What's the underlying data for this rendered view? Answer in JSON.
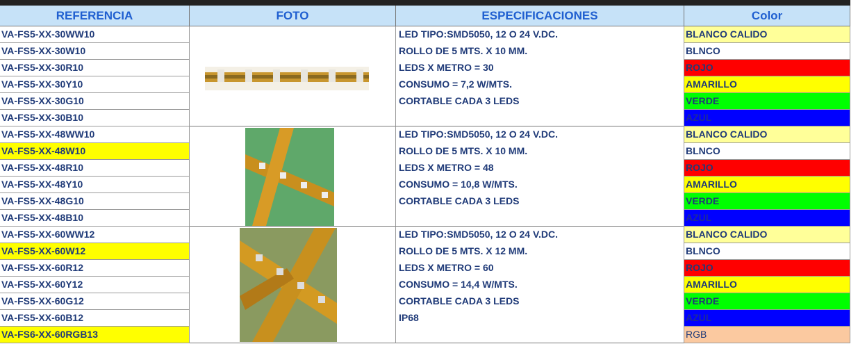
{
  "header": [
    "REFERENCIA",
    "FOTO",
    "ESPECIFICACIONES",
    "Color"
  ],
  "groups": [
    {
      "references": [
        {
          "code": "VA-FS5-XX-30WW10"
        },
        {
          "code": "VA-FS5-XX-30W10"
        },
        {
          "code": "VA-FS5-XX-30R10"
        },
        {
          "code": "VA-FS5-XX-30Y10"
        },
        {
          "code": "VA-FS5-XX-30G10"
        },
        {
          "code": "VA-FS5-XX-30B10"
        }
      ],
      "specs": [
        "LED TIPO:SMD5050, 12 O 24 V.DC.",
        "ROLLO DE 5 MTS. X 10 MM.",
        "LEDS X METRO = 30",
        "CONSUMO = 7,2 W/MTS.",
        "CORTABLE CADA 3 LEDS"
      ],
      "colors": [
        {
          "label": "BLANCO CALIDO",
          "fill": "#ffff99"
        },
        {
          "label": "BLNCO",
          "fill": "#ffffff"
        },
        {
          "label": "ROJO",
          "fill": "#ff0000"
        },
        {
          "label": "AMARILLO",
          "fill": "#ffff00"
        },
        {
          "label": "VERDE",
          "fill": "#00ff00"
        },
        {
          "label": "AZUL",
          "fill": "#0000ff"
        }
      ]
    },
    {
      "references": [
        {
          "code": "VA-FS5-XX-48WW10"
        },
        {
          "code": "VA-FS5-XX-48W10",
          "fill": "#ffff00"
        },
        {
          "code": "VA-FS5-XX-48R10"
        },
        {
          "code": "VA-FS5-XX-48Y10"
        },
        {
          "code": "VA-FS5-XX-48G10"
        },
        {
          "code": "VA-FS5-XX-48B10"
        }
      ],
      "specs": [
        "LED TIPO:SMD5050, 12 O 24 V.DC.",
        "ROLLO DE 5 MTS. X 10 MM.",
        "LEDS X METRO = 48",
        "CONSUMO = 10,8 W/MTS.",
        "CORTABLE CADA 3 LEDS"
      ],
      "colors": [
        {
          "label": "BLANCO CALIDO",
          "fill": "#ffff99"
        },
        {
          "label": "BLNCO",
          "fill": "#ffffff"
        },
        {
          "label": "ROJO",
          "fill": "#ff0000"
        },
        {
          "label": "AMARILLO",
          "fill": "#ffff00"
        },
        {
          "label": "VERDE",
          "fill": "#00ff00"
        },
        {
          "label": "AZUL",
          "fill": "#0000ff"
        }
      ]
    },
    {
      "references": [
        {
          "code": "VA-FS5-XX-60WW12"
        },
        {
          "code": "VA-FS5-XX-60W12",
          "fill": "#ffff00"
        },
        {
          "code": "VA-FS5-XX-60R12"
        },
        {
          "code": "VA-FS5-XX-60Y12"
        },
        {
          "code": "VA-FS5-XX-60G12"
        },
        {
          "code": "VA-FS5-XX-60B12"
        },
        {
          "code": "VA-FS6-XX-60RGB13",
          "fill": "#ffff00"
        }
      ],
      "specs": [
        "LED TIPO:SMD5050, 12 O 24 V.DC.",
        "ROLLO DE 5 MTS. X 12 MM.",
        "LEDS X METRO = 60",
        "CONSUMO = 14,4 W/MTS.",
        "CORTABLE CADA 3 LEDS",
        "IP68"
      ],
      "colors": [
        {
          "label": "BLANCO CALIDO",
          "fill": "#ffff99"
        },
        {
          "label": "BLNCO",
          "fill": "#ffffff"
        },
        {
          "label": "ROJO",
          "fill": "#ff0000"
        },
        {
          "label": "AMARILLO",
          "fill": "#ffff00"
        },
        {
          "label": "VERDE",
          "fill": "#00ff00"
        },
        {
          "label": "AZUL",
          "fill": "#0000ff"
        },
        {
          "label": "RGB",
          "fill": "#fbc9a0"
        }
      ]
    }
  ]
}
